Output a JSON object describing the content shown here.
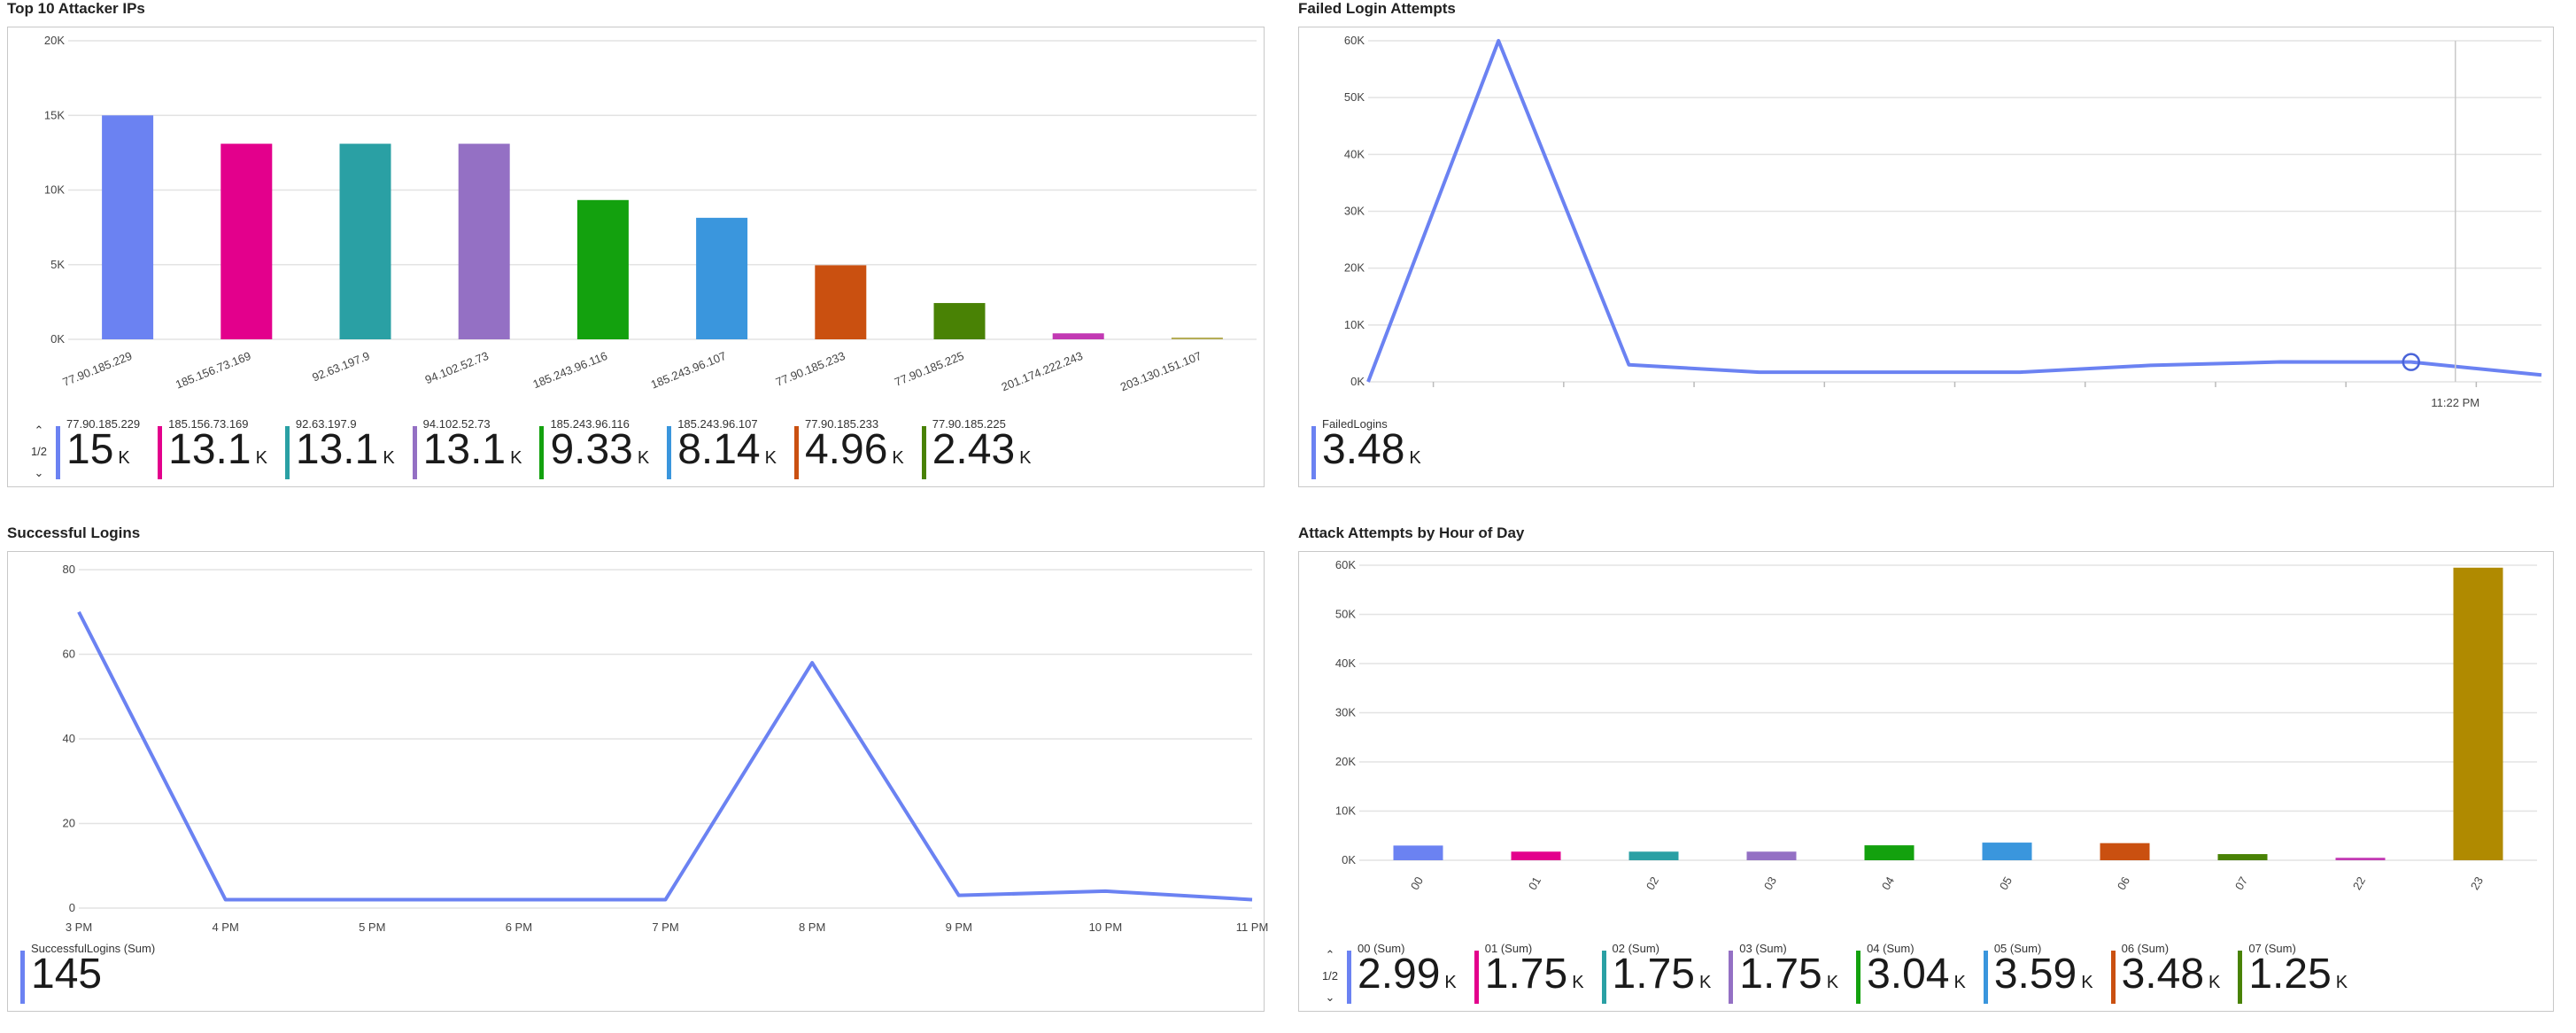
{
  "tiles": {
    "top_ips": {
      "title": "Top 10 Attacker IPs",
      "pager_label": "1/2",
      "legend": [
        {
          "name": "77.90.185.229",
          "value": "15",
          "unit": "K",
          "color": "#6b82f2"
        },
        {
          "name": "185.156.73.169",
          "value": "13.1",
          "unit": "K",
          "color": "#e3008c"
        },
        {
          "name": "92.63.197.9",
          "value": "13.1",
          "unit": "K",
          "color": "#2aa0a4"
        },
        {
          "name": "94.102.52.73",
          "value": "13.1",
          "unit": "K",
          "color": "#9470c4"
        },
        {
          "name": "185.243.96.116",
          "value": "9.33",
          "unit": "K",
          "color": "#13a10e"
        },
        {
          "name": "185.243.96.107",
          "value": "8.14",
          "unit": "K",
          "color": "#3a96dd"
        },
        {
          "name": "77.90.185.233",
          "value": "4.96",
          "unit": "K",
          "color": "#ca5010"
        },
        {
          "name": "77.90.185.225",
          "value": "2.43",
          "unit": "K",
          "color": "#498205"
        }
      ]
    },
    "failed_logins": {
      "title": "Failed Login Attempts",
      "legend": [
        {
          "name": "FailedLogins",
          "value": "3.48",
          "unit": "K",
          "color": "#6b82f2"
        }
      ]
    },
    "successful_logins": {
      "title": "Successful Logins",
      "legend": [
        {
          "name": "SuccessfulLogins (Sum)",
          "value": "145",
          "unit": "",
          "color": "#6b82f2"
        }
      ]
    },
    "by_hour": {
      "title": "Attack Attempts by Hour of Day",
      "pager_label": "1/2",
      "legend": [
        {
          "name": "00 (Sum)",
          "value": "2.99",
          "unit": "K",
          "color": "#6b82f2"
        },
        {
          "name": "01 (Sum)",
          "value": "1.75",
          "unit": "K",
          "color": "#e3008c"
        },
        {
          "name": "02 (Sum)",
          "value": "1.75",
          "unit": "K",
          "color": "#2aa0a4"
        },
        {
          "name": "03 (Sum)",
          "value": "1.75",
          "unit": "K",
          "color": "#9470c4"
        },
        {
          "name": "04 (Sum)",
          "value": "3.04",
          "unit": "K",
          "color": "#13a10e"
        },
        {
          "name": "05 (Sum)",
          "value": "3.59",
          "unit": "K",
          "color": "#3a96dd"
        },
        {
          "name": "06 (Sum)",
          "value": "3.48",
          "unit": "K",
          "color": "#ca5010"
        },
        {
          "name": "07 (Sum)",
          "value": "1.25",
          "unit": "K",
          "color": "#498205"
        }
      ]
    }
  },
  "chart_data": [
    {
      "id": "top_ips",
      "type": "bar",
      "title": "Top 10 Attacker IPs",
      "categories": [
        "77.90.185.229",
        "185.156.73.169",
        "92.63.197.9",
        "94.102.52.73",
        "185.243.96.116",
        "185.243.96.107",
        "77.90.185.233",
        "77.90.185.225",
        "201.174.222.243",
        "203.130.151.107"
      ],
      "values": [
        15000,
        13100,
        13100,
        13100,
        9330,
        8140,
        4960,
        2430,
        400,
        80
      ],
      "colors": [
        "#6b82f2",
        "#e3008c",
        "#2aa0a4",
        "#9470c4",
        "#13a10e",
        "#3a96dd",
        "#ca5010",
        "#498205",
        "#c239b3",
        "#b5ad57"
      ],
      "yticks": [
        "0K",
        "5K",
        "10K",
        "15K",
        "20K"
      ],
      "ylim": [
        0,
        20000
      ],
      "grid": true
    },
    {
      "id": "failed_logins",
      "type": "line",
      "title": "Failed Login Attempts",
      "series": [
        {
          "name": "FailedLogins",
          "values": [
            0,
            60000,
            3000,
            1700,
            1700,
            1700,
            2900,
            3500,
            3480,
            1200
          ],
          "color": "#6b82f2"
        }
      ],
      "xticks": [
        "11:22 PM"
      ],
      "yticks": [
        "0K",
        "10K",
        "20K",
        "30K",
        "40K",
        "50K",
        "60K"
      ],
      "ylim": [
        0,
        60000
      ],
      "grid": true
    },
    {
      "id": "successful_logins",
      "type": "line",
      "title": "Successful Logins",
      "series": [
        {
          "name": "SuccessfulLogins (Sum)",
          "values": [
            70,
            2,
            2,
            2,
            2,
            58,
            3,
            4,
            2
          ],
          "color": "#6b82f2"
        }
      ],
      "x": [
        "3 PM",
        "4 PM",
        "5 PM",
        "6 PM",
        "7 PM",
        "8 PM",
        "9 PM",
        "10 PM",
        "11 PM"
      ],
      "yticks": [
        "0",
        "20",
        "40",
        "60",
        "80"
      ],
      "ylim": [
        0,
        80
      ],
      "grid": true
    },
    {
      "id": "by_hour",
      "type": "bar",
      "title": "Attack Attempts by Hour of Day",
      "categories": [
        "00",
        "01",
        "02",
        "03",
        "04",
        "05",
        "06",
        "07",
        "22",
        "23"
      ],
      "values": [
        2990,
        1750,
        1750,
        1750,
        3040,
        3590,
        3480,
        1250,
        500,
        59500
      ],
      "colors": [
        "#6b82f2",
        "#e3008c",
        "#2aa0a4",
        "#9470c4",
        "#13a10e",
        "#3a96dd",
        "#ca5010",
        "#498205",
        "#c239b3",
        "#b08a00"
      ],
      "yticks": [
        "0K",
        "10K",
        "20K",
        "30K",
        "40K",
        "50K",
        "60K"
      ],
      "ylim": [
        0,
        60000
      ],
      "grid": true
    }
  ]
}
